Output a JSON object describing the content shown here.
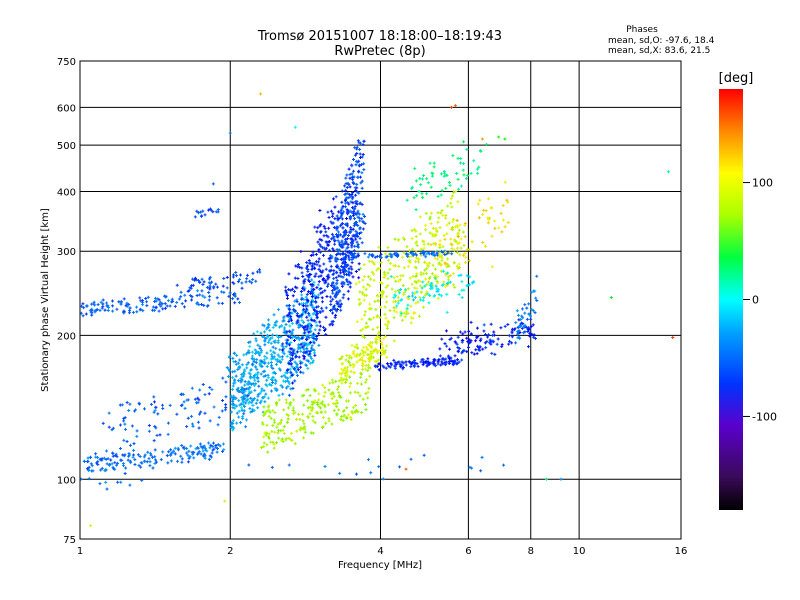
{
  "chart_data": {
    "type": "scatter",
    "title": "Tromsø 20151007 18:18:00–18:19:43",
    "subtitle": "RwPretec (8p)",
    "xlabel": "Frequency [MHz]",
    "ylabel": "Stationary phase Virtual Height [km]",
    "x_scale": "log",
    "y_scale": "log",
    "xlim": [
      1,
      16
    ],
    "ylim": [
      75,
      750
    ],
    "x_ticks": [
      1,
      2,
      4,
      6,
      8,
      10,
      16
    ],
    "y_ticks": [
      75,
      100,
      200,
      300,
      400,
      500,
      600,
      750
    ],
    "grid_x": [
      2,
      4,
      6,
      8,
      10
    ],
    "grid_y": [
      100,
      200,
      300,
      400,
      500,
      600
    ],
    "grid": true,
    "colorbar": {
      "label": "[deg]",
      "ticks": [
        100,
        0,
        -100
      ],
      "min": -180,
      "max": 180,
      "placement": "right"
    },
    "stats": {
      "heading": "Phases",
      "line_o": "mean, sd,O: -97.6, 18.4",
      "line_x": "mean, sd,X: 83.6, 21.5"
    },
    "traces": [
      {
        "f0": 1.02,
        "f1": 1.95,
        "h0": 103,
        "h1": 120,
        "phase": -105,
        "n": 170,
        "jit": 0.02
      },
      {
        "f0": 1.0,
        "f1": 2.1,
        "h0": 218,
        "h1": 250,
        "phase": -110,
        "n": 140,
        "jit": 0.015
      },
      {
        "f0": 1.55,
        "f1": 2.3,
        "h0": 240,
        "h1": 275,
        "phase": -115,
        "n": 60,
        "jit": 0.03
      },
      {
        "f0": 1.7,
        "f1": 1.9,
        "h0": 355,
        "h1": 370,
        "phase": -115,
        "n": 15,
        "jit": 0.02
      },
      {
        "f0": 1.1,
        "f1": 2.2,
        "h0": 115,
        "h1": 165,
        "phase": -110,
        "n": 110,
        "jit": 0.07
      },
      {
        "f0": 2.0,
        "f1": 3.0,
        "h0": 125,
        "h1": 260,
        "phase": -85,
        "n": 560,
        "jit": 0.07
      },
      {
        "f0": 2.6,
        "f1": 3.6,
        "h0": 150,
        "h1": 450,
        "phase": -130,
        "n": 460,
        "jit": 0.1
      },
      {
        "f0": 3.2,
        "f1": 3.7,
        "h0": 200,
        "h1": 540,
        "phase": -115,
        "n": 280,
        "jit": 0.08
      },
      {
        "f0": 2.3,
        "f1": 3.8,
        "h0": 112,
        "h1": 175,
        "phase": 75,
        "n": 240,
        "jit": 0.035
      },
      {
        "f0": 3.3,
        "f1": 4.1,
        "h0": 160,
        "h1": 200,
        "phase": 90,
        "n": 130,
        "jit": 0.06
      },
      {
        "f0": 3.6,
        "f1": 5.8,
        "h0": 180,
        "h1": 400,
        "phase": 85,
        "n": 360,
        "jit": 0.12
      },
      {
        "f0": 3.9,
        "f1": 5.8,
        "h0": 170,
        "h1": 180,
        "phase": -130,
        "n": 110,
        "jit": 0.012
      },
      {
        "f0": 3.5,
        "f1": 5.6,
        "h0": 290,
        "h1": 300,
        "phase": -105,
        "n": 70,
        "jit": 0.015
      },
      {
        "f0": 5.2,
        "f1": 8.2,
        "h0": 175,
        "h1": 220,
        "phase": -130,
        "n": 130,
        "jit": 0.05
      },
      {
        "f0": 7.5,
        "f1": 8.2,
        "h0": 190,
        "h1": 270,
        "phase": -100,
        "n": 40,
        "jit": 0.05
      },
      {
        "f0": 4.2,
        "f1": 6.2,
        "h0": 230,
        "h1": 270,
        "phase": -60,
        "n": 70,
        "jit": 0.1
      },
      {
        "f0": 4.6,
        "f1": 6.5,
        "h0": 380,
        "h1": 500,
        "phase": -20,
        "n": 60,
        "jit": 0.12
      },
      {
        "f0": 5.0,
        "f1": 7.2,
        "h0": 250,
        "h1": 420,
        "phase": 110,
        "n": 70,
        "jit": 0.12
      },
      {
        "f0": 1.0,
        "f1": 9.0,
        "h0": 95,
        "h1": 115,
        "phase": -105,
        "n": 30,
        "jit": 0.03
      }
    ],
    "outliers": [
      {
        "f": 5.65,
        "h": 605,
        "phase": 150
      },
      {
        "f": 5.55,
        "h": 600,
        "phase": 160
      },
      {
        "f": 6.4,
        "h": 515,
        "phase": 130
      },
      {
        "f": 7.1,
        "h": 515,
        "phase": 20
      },
      {
        "f": 6.9,
        "h": 520,
        "phase": 30
      },
      {
        "f": 11.6,
        "h": 240,
        "phase": 10
      },
      {
        "f": 15.1,
        "h": 440,
        "phase": -40
      },
      {
        "f": 15.4,
        "h": 198,
        "phase": 160
      },
      {
        "f": 8.6,
        "h": 100,
        "phase": -20
      },
      {
        "f": 9.2,
        "h": 100,
        "phase": -95
      },
      {
        "f": 2.3,
        "h": 640,
        "phase": 120
      },
      {
        "f": 2.0,
        "h": 530,
        "phase": -100
      },
      {
        "f": 4.5,
        "h": 105,
        "phase": 150
      },
      {
        "f": 1.05,
        "h": 80,
        "phase": 90
      },
      {
        "f": 1.95,
        "h": 90,
        "phase": 90
      },
      {
        "f": 1.85,
        "h": 415,
        "phase": -110
      },
      {
        "f": 2.7,
        "h": 545,
        "phase": -60
      }
    ]
  }
}
